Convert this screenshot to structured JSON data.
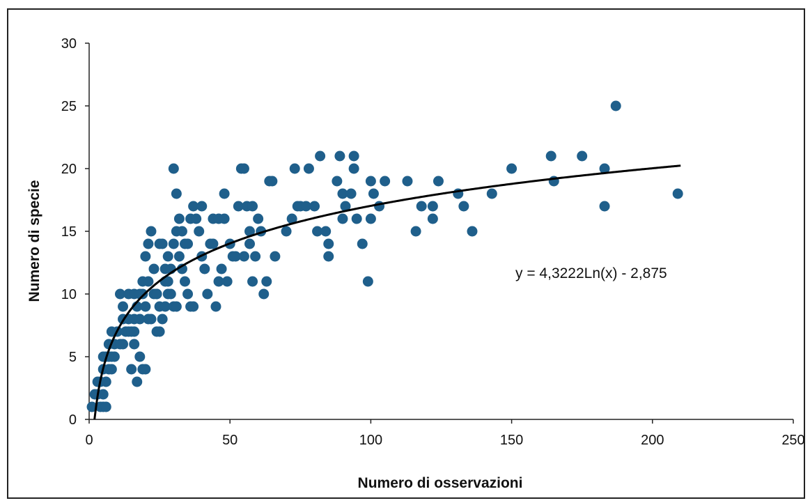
{
  "chart_data": {
    "type": "scatter",
    "title": "",
    "xlabel": "Numero di osservazioni",
    "ylabel": "Numero di specie",
    "xlim": [
      0,
      250
    ],
    "ylim": [
      0,
      30
    ],
    "x_ticks": [
      "0",
      "50",
      "100",
      "150",
      "200",
      "250"
    ],
    "y_ticks": [
      "0",
      "5",
      "10",
      "15",
      "20",
      "25",
      "30"
    ],
    "grid": false,
    "legend": "none",
    "marker_color": "#1F5F8B",
    "trendline": {
      "type": "logarithmic",
      "a": 4.3222,
      "b": -2.875,
      "x_range": [
        1.9,
        210
      ],
      "equation_label": "y = 4,3222Ln(x) - 2,875",
      "color": "#000000"
    },
    "points": [
      [
        1,
        1
      ],
      [
        2,
        2
      ],
      [
        3,
        3
      ],
      [
        4,
        1
      ],
      [
        5,
        1
      ],
      [
        6,
        1
      ],
      [
        3,
        2
      ],
      [
        4,
        3
      ],
      [
        5,
        4
      ],
      [
        5,
        2
      ],
      [
        6,
        3
      ],
      [
        7,
        4
      ],
      [
        8,
        4
      ],
      [
        6,
        5
      ],
      [
        5,
        5
      ],
      [
        7,
        6
      ],
      [
        8,
        5
      ],
      [
        9,
        5
      ],
      [
        7,
        5
      ],
      [
        8,
        7
      ],
      [
        10,
        7
      ],
      [
        9,
        6
      ],
      [
        11,
        6
      ],
      [
        12,
        6
      ],
      [
        12,
        8
      ],
      [
        13,
        7
      ],
      [
        14,
        7
      ],
      [
        15,
        7
      ],
      [
        16,
        7
      ],
      [
        11,
        10
      ],
      [
        12,
        9
      ],
      [
        14,
        8
      ],
      [
        15,
        4
      ],
      [
        16,
        6
      ],
      [
        17,
        3
      ],
      [
        18,
        5
      ],
      [
        19,
        4
      ],
      [
        20,
        4
      ],
      [
        16,
        8
      ],
      [
        17,
        9
      ],
      [
        18,
        8
      ],
      [
        19,
        10
      ],
      [
        20,
        9
      ],
      [
        21,
        8
      ],
      [
        22,
        8
      ],
      [
        14,
        10
      ],
      [
        16,
        10
      ],
      [
        18,
        10
      ],
      [
        19,
        11
      ],
      [
        21,
        11
      ],
      [
        23,
        10
      ],
      [
        24,
        10
      ],
      [
        20,
        13
      ],
      [
        21,
        14
      ],
      [
        22,
        15
      ],
      [
        23,
        12
      ],
      [
        24,
        10
      ],
      [
        25,
        9
      ],
      [
        26,
        8
      ],
      [
        27,
        9
      ],
      [
        28,
        10
      ],
      [
        25,
        14
      ],
      [
        26,
        14
      ],
      [
        27,
        12
      ],
      [
        28,
        11
      ],
      [
        29,
        10
      ],
      [
        30,
        9
      ],
      [
        31,
        9
      ],
      [
        24,
        7
      ],
      [
        25,
        7
      ],
      [
        27,
        11
      ],
      [
        28,
        13
      ],
      [
        29,
        12
      ],
      [
        30,
        14
      ],
      [
        31,
        15
      ],
      [
        32,
        13
      ],
      [
        33,
        12
      ],
      [
        34,
        11
      ],
      [
        35,
        10
      ],
      [
        36,
        9
      ],
      [
        37,
        9
      ],
      [
        30,
        20
      ],
      [
        31,
        18
      ],
      [
        32,
        16
      ],
      [
        33,
        15
      ],
      [
        34,
        14
      ],
      [
        35,
        14
      ],
      [
        36,
        16
      ],
      [
        37,
        17
      ],
      [
        38,
        16
      ],
      [
        39,
        15
      ],
      [
        40,
        13
      ],
      [
        41,
        12
      ],
      [
        42,
        10
      ],
      [
        43,
        14
      ],
      [
        44,
        16
      ],
      [
        45,
        9
      ],
      [
        46,
        11
      ],
      [
        47,
        12
      ],
      [
        48,
        18
      ],
      [
        40,
        17
      ],
      [
        44,
        14
      ],
      [
        46,
        16
      ],
      [
        48,
        16
      ],
      [
        49,
        11
      ],
      [
        50,
        14
      ],
      [
        51,
        13
      ],
      [
        52,
        13
      ],
      [
        53,
        17
      ],
      [
        54,
        20
      ],
      [
        55,
        20
      ],
      [
        56,
        17
      ],
      [
        57,
        15
      ],
      [
        58,
        11
      ],
      [
        59,
        13
      ],
      [
        60,
        16
      ],
      [
        61,
        15
      ],
      [
        62,
        10
      ],
      [
        63,
        11
      ],
      [
        64,
        19
      ],
      [
        65,
        19
      ],
      [
        66,
        13
      ],
      [
        55,
        13
      ],
      [
        57,
        14
      ],
      [
        58,
        17
      ],
      [
        70,
        15
      ],
      [
        72,
        16
      ],
      [
        73,
        20
      ],
      [
        74,
        17
      ],
      [
        75,
        17
      ],
      [
        77,
        17
      ],
      [
        78,
        20
      ],
      [
        80,
        17
      ],
      [
        81,
        15
      ],
      [
        82,
        21
      ],
      [
        84,
        15
      ],
      [
        85,
        14
      ],
      [
        85,
        13
      ],
      [
        88,
        19
      ],
      [
        89,
        21
      ],
      [
        90,
        16
      ],
      [
        90,
        18
      ],
      [
        91,
        17
      ],
      [
        93,
        18
      ],
      [
        94,
        20
      ],
      [
        94,
        21
      ],
      [
        95,
        16
      ],
      [
        97,
        14
      ],
      [
        99,
        11
      ],
      [
        100,
        19
      ],
      [
        100,
        16
      ],
      [
        101,
        18
      ],
      [
        103,
        17
      ],
      [
        105,
        19
      ],
      [
        113,
        19
      ],
      [
        116,
        15
      ],
      [
        118,
        17
      ],
      [
        122,
        17
      ],
      [
        122,
        16
      ],
      [
        124,
        19
      ],
      [
        131,
        18
      ],
      [
        133,
        17
      ],
      [
        136,
        15
      ],
      [
        143,
        18
      ],
      [
        150,
        20
      ],
      [
        164,
        21
      ],
      [
        165,
        19
      ],
      [
        175,
        21
      ],
      [
        183,
        20
      ],
      [
        183,
        17
      ],
      [
        187,
        25
      ],
      [
        209,
        18
      ]
    ]
  }
}
